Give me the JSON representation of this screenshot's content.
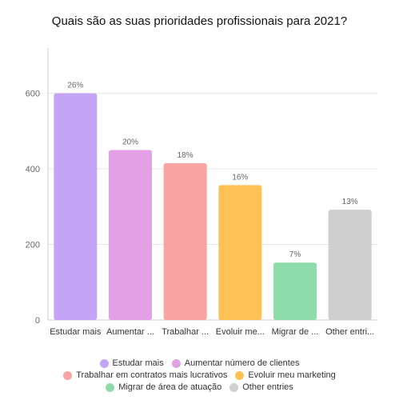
{
  "chart_data": {
    "type": "bar",
    "title": "Quais são as suas prioridades profissionais para 2021?",
    "categories": [
      "Estudar mais",
      "Aumentar número de clientes",
      "Trabalhar em contratos mais lucrativos",
      "Evoluir meu marketing",
      "Migrar de área de atuação",
      "Other entries"
    ],
    "category_tick_labels": [
      "Estudar mais",
      "Aumentar ...",
      "Trabalhar ...",
      "Evoluir me...",
      "Migrar de ...",
      "Other entri..."
    ],
    "values": [
      600,
      450,
      415,
      357,
      152,
      292
    ],
    "data_labels": [
      "26%",
      "20%",
      "18%",
      "16%",
      "7%",
      "13%"
    ],
    "colors": [
      "#c5a3f7",
      "#e4a0e4",
      "#f9a3a3",
      "#fec155",
      "#8fdcab",
      "#cfcfcf"
    ],
    "y_ticks": [
      0,
      200,
      400,
      600
    ],
    "ylim": [
      0,
      720
    ],
    "grid": true,
    "legend_position": "bottom"
  },
  "legend_rows": [
    [
      0,
      1
    ],
    [
      2,
      3
    ],
    [
      4,
      5
    ]
  ]
}
